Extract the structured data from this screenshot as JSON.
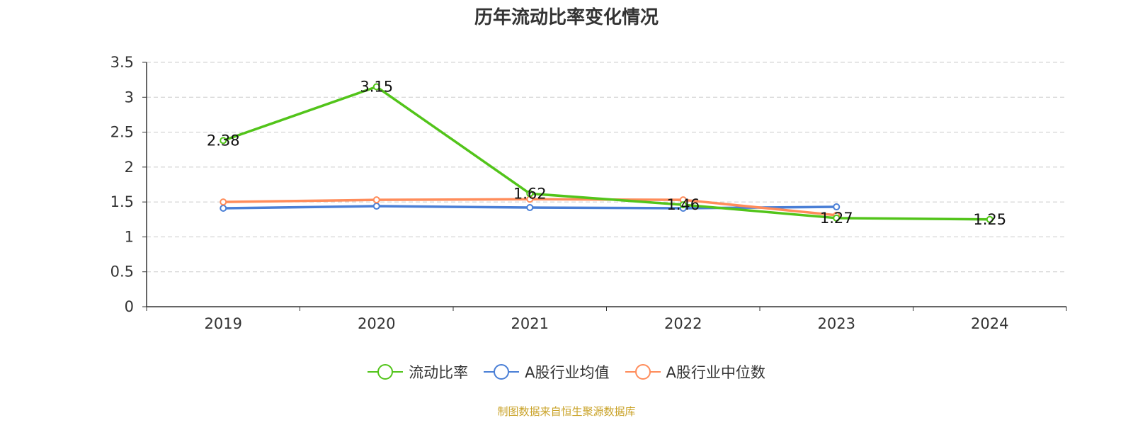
{
  "chart_data": {
    "type": "line",
    "title": "历年流动比率变化情况",
    "categories": [
      "2019",
      "2020",
      "2021",
      "2022",
      "2023",
      "2024"
    ],
    "ylim": [
      0,
      3.5
    ],
    "yticks": [
      "0",
      "0.5",
      "1",
      "1.5",
      "2",
      "2.5",
      "3",
      "3.5"
    ],
    "grid": true,
    "legend_position": "bottom",
    "series": [
      {
        "name": "流动比率",
        "color": "#52c41a",
        "values": [
          2.38,
          3.15,
          1.62,
          1.46,
          1.27,
          1.25
        ],
        "labels": [
          "2.38",
          "3.15",
          "1.62",
          "1.46",
          "1.27",
          "1.25"
        ]
      },
      {
        "name": "A股行业均值",
        "color": "#4a7fd6",
        "values": [
          1.41,
          1.44,
          1.42,
          1.41,
          1.43,
          null
        ]
      },
      {
        "name": "A股行业中位数",
        "color": "#ff8c5a",
        "values": [
          1.5,
          1.53,
          1.54,
          1.53,
          1.31,
          null
        ]
      }
    ]
  },
  "source": "制图数据来自恒生聚源数据库"
}
